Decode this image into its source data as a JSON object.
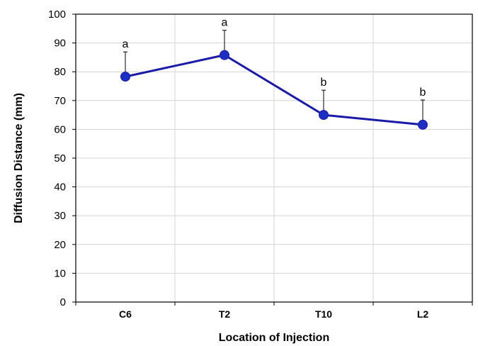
{
  "chart_data": {
    "type": "line",
    "title": "",
    "xlabel": "Location of Injection",
    "ylabel": "Diffusion Distance (mm)",
    "categories": [
      "C6",
      "T2",
      "T10",
      "L2"
    ],
    "ylim": [
      0,
      100
    ],
    "yticks": [
      0,
      10,
      20,
      30,
      40,
      50,
      60,
      70,
      80,
      90,
      100
    ],
    "grid": true,
    "legend": "none",
    "series": [
      {
        "values": [
          78.3,
          85.8,
          65.0,
          61.6
        ],
        "error_upper": [
          8.6,
          8.6,
          8.6,
          8.6
        ],
        "significance_letters": [
          "a",
          "a",
          "b",
          "b"
        ],
        "color": "#1a1aa8",
        "marker_color": "#1c2fc4"
      }
    ]
  }
}
